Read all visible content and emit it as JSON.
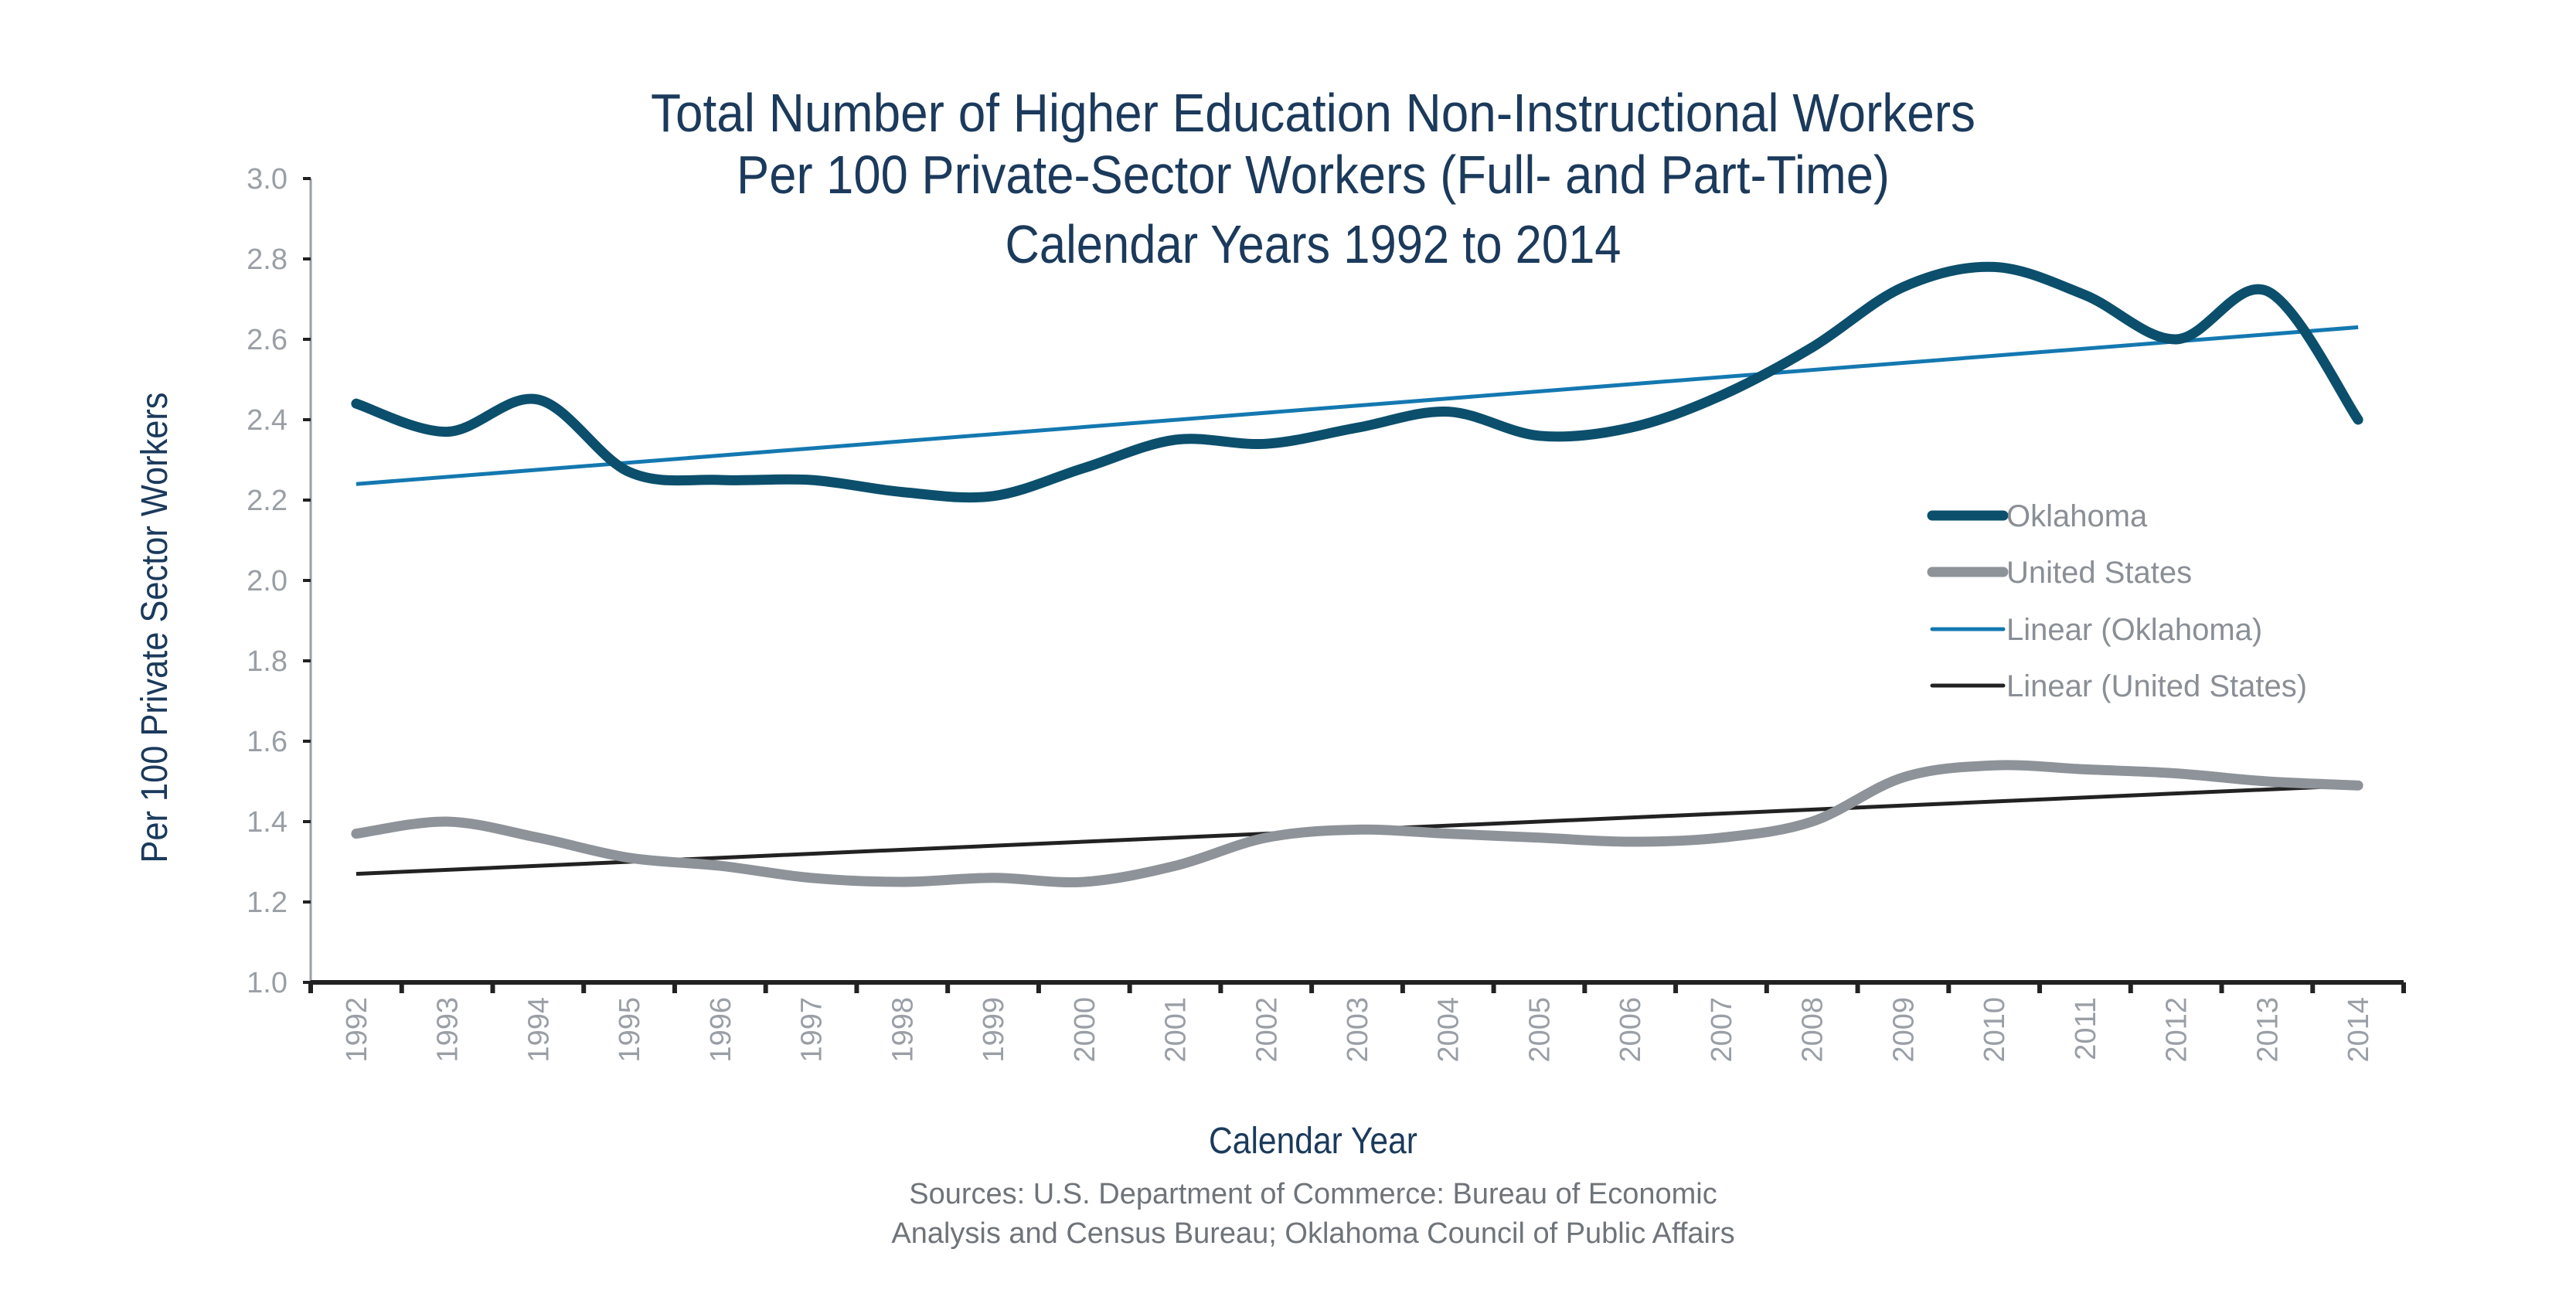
{
  "chart_data": {
    "type": "line",
    "title": [
      "Total Number of Higher Education Non-Instructional Workers",
      "Per 100 Private-Sector Workers (Full- and Part-Time)",
      "Calendar Years 1992 to 2014"
    ],
    "xlabel": "Calendar Year",
    "ylabel": "Per 100 Private Sector Workers",
    "ylim": [
      1.0,
      3.0
    ],
    "yticks": [
      "1.0",
      "1.2",
      "1.4",
      "1.6",
      "1.8",
      "2.0",
      "2.2",
      "2.4",
      "2.6",
      "2.8",
      "3.0"
    ],
    "categories": [
      "1992",
      "1993",
      "1994",
      "1995",
      "1996",
      "1997",
      "1998",
      "1999",
      "2000",
      "2001",
      "2002",
      "2003",
      "2004",
      "2005",
      "2006",
      "2007",
      "2008",
      "2009",
      "2010",
      "2011",
      "2012",
      "2013",
      "2014"
    ],
    "series": [
      {
        "name": "Oklahoma",
        "color": "#0b4f6c",
        "values": [
          2.44,
          2.37,
          2.45,
          2.27,
          2.25,
          2.25,
          2.22,
          2.21,
          2.28,
          2.35,
          2.34,
          2.38,
          2.42,
          2.36,
          2.38,
          2.46,
          2.58,
          2.73,
          2.78,
          2.71,
          2.6,
          2.72,
          2.4
        ]
      },
      {
        "name": "United States",
        "color": "#8e9399",
        "values": [
          1.37,
          1.4,
          1.36,
          1.31,
          1.29,
          1.26,
          1.25,
          1.26,
          1.25,
          1.29,
          1.36,
          1.38,
          1.37,
          1.36,
          1.35,
          1.36,
          1.4,
          1.51,
          1.54,
          1.53,
          1.52,
          1.5,
          1.49
        ]
      },
      {
        "name": "Linear (Oklahoma)",
        "color": "#1478b0",
        "trend": [
          2.24,
          2.63
        ]
      },
      {
        "name": "Linear (United States)",
        "color": "#222222",
        "trend": [
          1.27,
          1.49
        ]
      }
    ],
    "legend_position": "right",
    "grid": false
  },
  "source": [
    "Sources: U.S. Department of Commerce: Bureau of Economic",
    "Analysis and Census Bureau; Oklahoma Council of Public Affairs"
  ]
}
